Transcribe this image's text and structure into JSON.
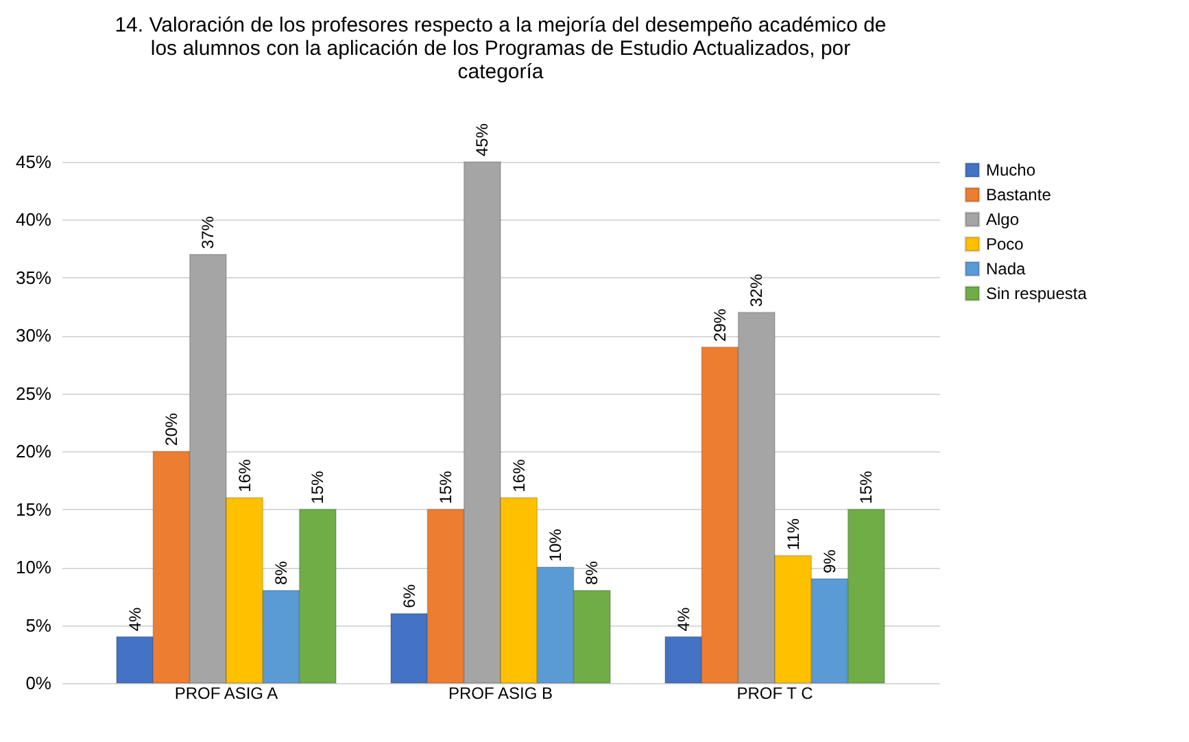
{
  "chart_data": {
    "type": "bar",
    "title": "14. Valoración de los profesores respecto a la mejoría del desempeño académico de los alumnos con la aplicación de los Programas de Estudio Actualizados, por categoría",
    "categories": [
      "PROF ASIG A",
      "PROF ASIG B",
      "PROF T C"
    ],
    "series": [
      {
        "name": "Mucho",
        "color": "#4472c4",
        "values": [
          4,
          6,
          4
        ],
        "value_labels": [
          "4%",
          "6%",
          "4%"
        ]
      },
      {
        "name": "Bastante",
        "color": "#ed7d31",
        "values": [
          20,
          15,
          29
        ],
        "value_labels": [
          "20%",
          "15%",
          "29%"
        ]
      },
      {
        "name": "Algo",
        "color": "#a5a5a5",
        "values": [
          37,
          45,
          32
        ],
        "value_labels": [
          "37%",
          "45%",
          "32%"
        ]
      },
      {
        "name": "Poco",
        "color": "#ffc000",
        "values": [
          16,
          16,
          11
        ],
        "value_labels": [
          "16%",
          "16%",
          "11%"
        ]
      },
      {
        "name": "Nada",
        "color": "#5b9bd5",
        "values": [
          8,
          10,
          9
        ],
        "value_labels": [
          "8%",
          "10%",
          "9%"
        ]
      },
      {
        "name": "Sin respuesta",
        "color": "#70ad47",
        "values": [
          15,
          8,
          15
        ],
        "value_labels": [
          "15%",
          "8%",
          "15%"
        ]
      }
    ],
    "ylim": [
      0,
      45
    ],
    "yticks": [
      {
        "value": 0,
        "label": "0%"
      },
      {
        "value": 5,
        "label": "5%"
      },
      {
        "value": 10,
        "label": "10%"
      },
      {
        "value": 15,
        "label": "15%"
      },
      {
        "value": 20,
        "label": "20%"
      },
      {
        "value": 25,
        "label": "25%"
      },
      {
        "value": 30,
        "label": "30%"
      },
      {
        "value": 35,
        "label": "35%"
      },
      {
        "value": 40,
        "label": "40%"
      },
      {
        "value": 45,
        "label": "45%"
      }
    ],
    "grid": "y",
    "legend": "right"
  }
}
